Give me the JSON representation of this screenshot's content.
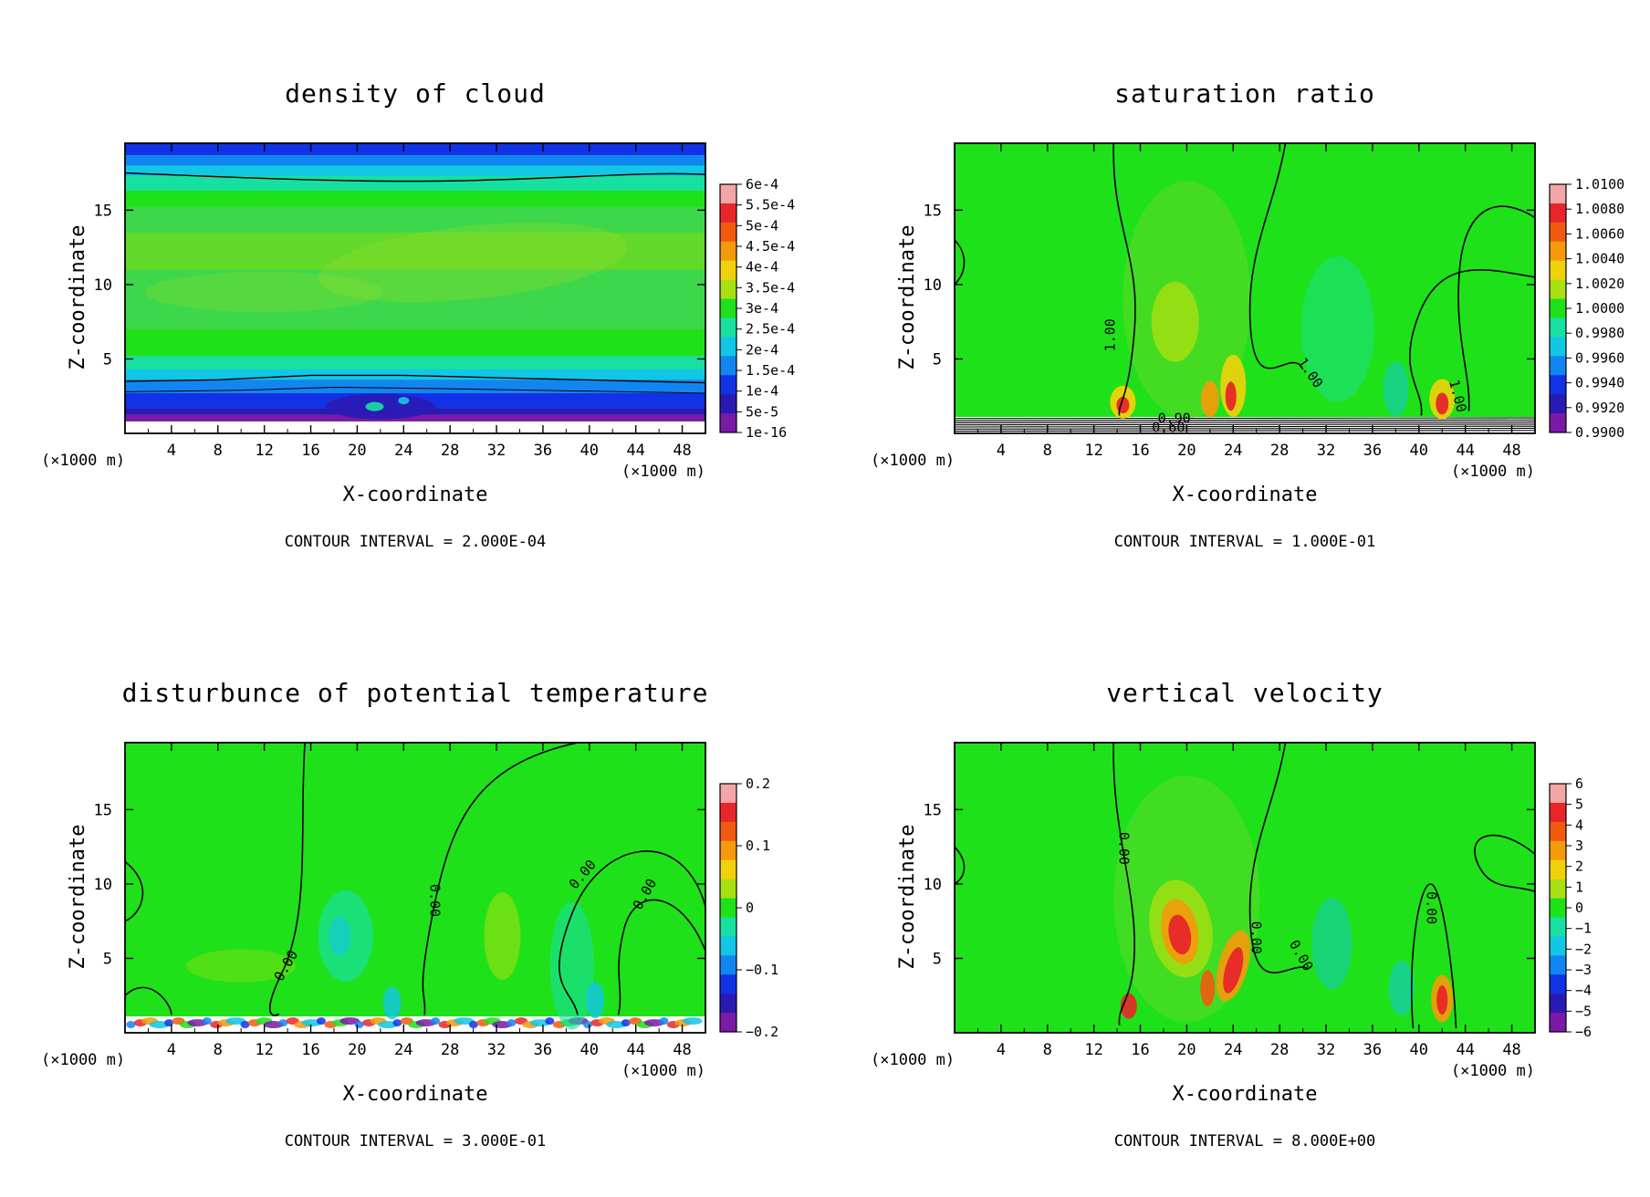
{
  "chart_data": [
    {
      "type": "heatmap",
      "title": "density of cloud",
      "xlabel": "X-coordinate",
      "ylabel": "Z-coordinate",
      "x_unit": "(×1000 m)",
      "x_ticks": [
        "4",
        "8",
        "12",
        "16",
        "20",
        "24",
        "28",
        "32",
        "36",
        "40",
        "44",
        "48"
      ],
      "y_ticks": [
        "5",
        "10",
        "15"
      ],
      "xlim": [
        0,
        50
      ],
      "ylim": [
        0,
        19.5
      ],
      "colorbar_labels": [
        "6e-4",
        "5.5e-4",
        "5e-4",
        "4.5e-4",
        "4e-4",
        "3.5e-4",
        "3e-4",
        "2.5e-4",
        "2e-4",
        "1.5e-4",
        "1e-4",
        "5e-5",
        "1e-16"
      ],
      "contour_labels": [],
      "interval_text": "CONTOUR INTERVAL = 2.000E-04",
      "background": "#3ed64a"
    },
    {
      "type": "heatmap",
      "title": "saturation ratio",
      "xlabel": "X-coordinate",
      "ylabel": "Z-coordinate",
      "x_unit": "(×1000 m)",
      "x_ticks": [
        "4",
        "8",
        "12",
        "16",
        "20",
        "24",
        "28",
        "32",
        "36",
        "40",
        "44",
        "48"
      ],
      "y_ticks": [
        "5",
        "10",
        "15"
      ],
      "xlim": [
        0,
        50
      ],
      "ylim": [
        0,
        19.5
      ],
      "colorbar_labels": [
        "1.0100",
        "1.0080",
        "1.0060",
        "1.0040",
        "1.0020",
        "1.0000",
        "0.9980",
        "0.9960",
        "0.9940",
        "0.9920",
        "0.9900"
      ],
      "contour_labels": [
        "1.00",
        "1.00",
        "1.00",
        "0.90",
        "0.60"
      ],
      "interval_text": "CONTOUR INTERVAL = 1.000E-01",
      "background": "#1fe11a"
    },
    {
      "type": "heatmap",
      "title": "disturbunce of potential temperature",
      "xlabel": "X-coordinate",
      "ylabel": "Z-coordinate",
      "x_unit": "(×1000 m)",
      "x_ticks": [
        "4",
        "8",
        "12",
        "16",
        "20",
        "24",
        "28",
        "32",
        "36",
        "40",
        "44",
        "48"
      ],
      "y_ticks": [
        "5",
        "10",
        "15"
      ],
      "xlim": [
        0,
        50
      ],
      "ylim": [
        0,
        19.5
      ],
      "colorbar_labels": [
        "0.2",
        "0.1",
        "0",
        "−0.1",
        "−0.2"
      ],
      "contour_labels": [
        "0.00",
        "0.00",
        "0.00",
        "0.00"
      ],
      "interval_text": "CONTOUR INTERVAL = 3.000E-01",
      "background": "#1fe11a"
    },
    {
      "type": "heatmap",
      "title": "vertical velocity",
      "xlabel": "X-coordinate",
      "ylabel": "Z-coordinate",
      "x_unit": "(×1000 m)",
      "x_ticks": [
        "4",
        "8",
        "12",
        "16",
        "20",
        "24",
        "28",
        "32",
        "36",
        "40",
        "44",
        "48"
      ],
      "y_ticks": [
        "5",
        "10",
        "15"
      ],
      "xlim": [
        0,
        50
      ],
      "ylim": [
        0,
        19.5
      ],
      "colorbar_labels": [
        "6",
        "5",
        "4",
        "3",
        "2",
        "1",
        "0",
        "−1",
        "−2",
        "−3",
        "−4",
        "−5",
        "−6"
      ],
      "contour_labels": [
        "0.00",
        "0.00",
        "0.00",
        "0.00"
      ],
      "interval_text": "CONTOUR INTERVAL = 8.000E+00",
      "background": "#1fe11a"
    }
  ],
  "colormap": [
    "#f4a6a6",
    "#e8262a",
    "#f25a10",
    "#f59a0a",
    "#f0d20a",
    "#a8e012",
    "#1fe11a",
    "#18e0a0",
    "#12c6e6",
    "#1286f0",
    "#1232e6",
    "#2a1ab4",
    "#7a1aa6"
  ]
}
